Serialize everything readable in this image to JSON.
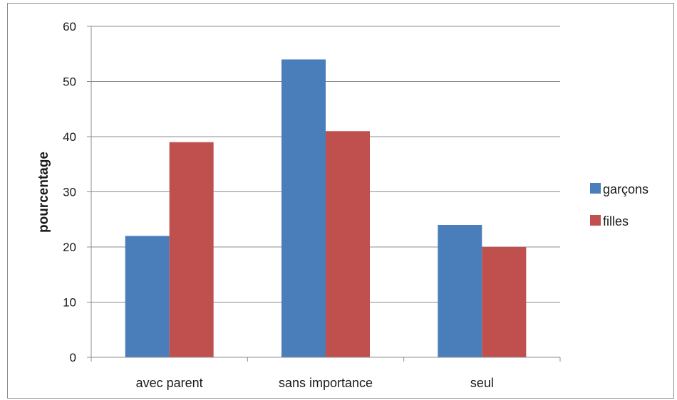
{
  "chart_data": {
    "type": "bar",
    "categories": [
      "avec parent",
      "sans importance",
      "seul"
    ],
    "series": [
      {
        "name": "garçons",
        "values": [
          22,
          54,
          24
        ],
        "color": "#4a7ebb"
      },
      {
        "name": "filles",
        "values": [
          39,
          41,
          20
        ],
        "color": "#c0504d"
      }
    ],
    "title": "",
    "xlabel": "",
    "ylabel": "pourcentage",
    "ylim": [
      0,
      60
    ],
    "yticks": [
      "0",
      "10",
      "20",
      "30",
      "40",
      "50",
      "60"
    ],
    "grid": true,
    "legend_position": "right"
  }
}
